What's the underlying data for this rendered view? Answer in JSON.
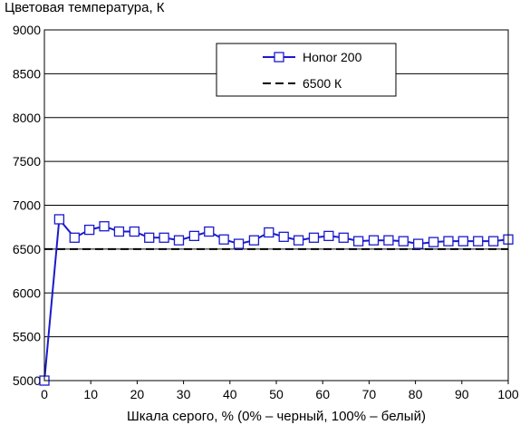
{
  "chart_data": {
    "type": "line",
    "title": "",
    "ylabel": "Цветовая температура, К",
    "xlabel": "Шкала серого, % (0% – черный, 100% – белый)",
    "xlim": [
      0,
      100
    ],
    "ylim": [
      5000,
      9000
    ],
    "x_ticks": [
      "0",
      "10",
      "20",
      "30",
      "40",
      "50",
      "60",
      "70",
      "80",
      "90",
      "100"
    ],
    "y_ticks": [
      "5000",
      "5500",
      "6000",
      "6500",
      "7000",
      "7500",
      "8000",
      "8500",
      "9000"
    ],
    "grid": "horizontal",
    "legend_position": "top-right",
    "series": [
      {
        "name": "Honor 200",
        "color": "#1a1acc",
        "marker": "square",
        "x": [
          0,
          3.2,
          6.5,
          9.7,
          12.9,
          16.1,
          19.4,
          22.6,
          25.8,
          29.0,
          32.3,
          35.5,
          38.7,
          41.9,
          45.2,
          48.4,
          51.6,
          54.8,
          58.1,
          61.3,
          64.5,
          67.7,
          71.0,
          74.2,
          77.4,
          80.6,
          83.9,
          87.1,
          90.3,
          93.5,
          96.8,
          100
        ],
        "y": [
          5000,
          6840,
          6630,
          6720,
          6760,
          6700,
          6700,
          6630,
          6630,
          6600,
          6650,
          6700,
          6610,
          6560,
          6600,
          6690,
          6640,
          6600,
          6630,
          6650,
          6630,
          6590,
          6600,
          6600,
          6590,
          6560,
          6580,
          6590,
          6590,
          6590,
          6590,
          6610
        ]
      },
      {
        "name": "6500 К",
        "color": "#000000",
        "style": "dashed",
        "x": [
          0,
          100
        ],
        "y": [
          6500,
          6500
        ]
      }
    ]
  }
}
